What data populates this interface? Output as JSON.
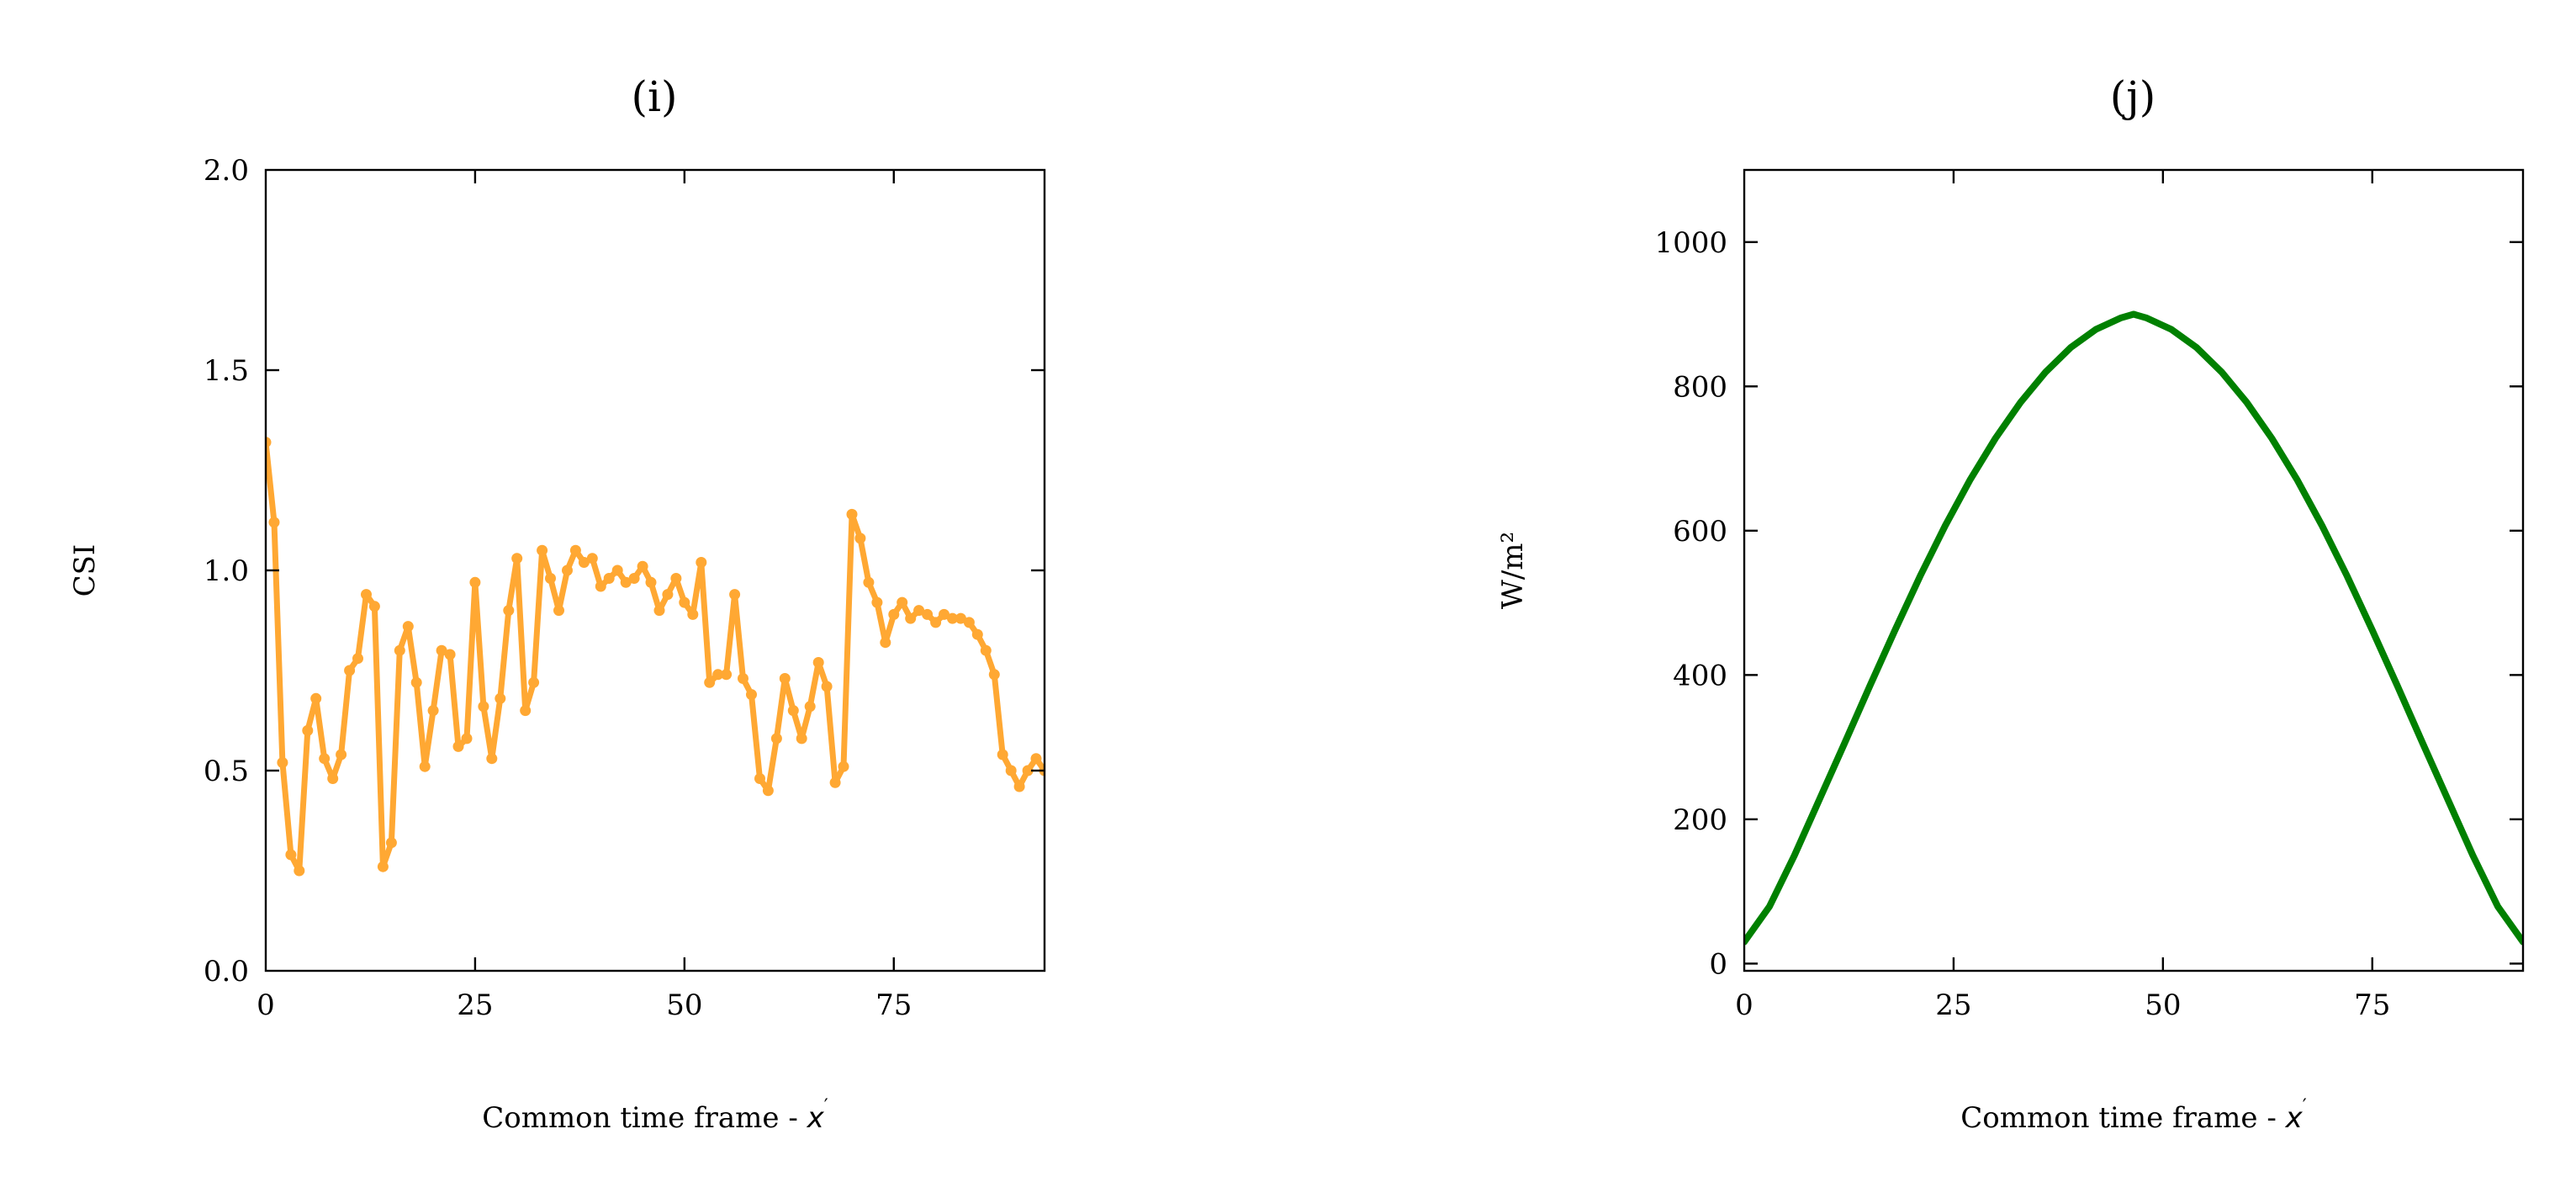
{
  "chart_data": [
    {
      "type": "line",
      "title": "(i)",
      "xlabel_prefix": "Common time frame - ",
      "xlabel_var": "x",
      "xlabel_prime": "′",
      "ylabel": "CSI",
      "xlim": [
        0,
        93
      ],
      "ylim": [
        0,
        2.0
      ],
      "xticks": [
        0,
        25,
        50,
        75
      ],
      "xtick_labels": [
        "0",
        "25",
        "50",
        "75"
      ],
      "yticks": [
        0,
        0.5,
        1.0,
        1.5,
        2.0
      ],
      "ytick_labels": [
        "0.0",
        "0.5",
        "1.0",
        "1.5",
        "2.0"
      ],
      "color": "#ffa833",
      "series": [
        {
          "name": "CSI",
          "x": [
            0,
            1,
            2,
            3,
            4,
            5,
            6,
            7,
            8,
            9,
            10,
            11,
            12,
            13,
            14,
            15,
            16,
            17,
            18,
            19,
            20,
            21,
            22,
            23,
            24,
            25,
            26,
            27,
            28,
            29,
            30,
            31,
            32,
            33,
            34,
            35,
            36,
            37,
            38,
            39,
            40,
            41,
            42,
            43,
            44,
            45,
            46,
            47,
            48,
            49,
            50,
            51,
            52,
            53,
            54,
            55,
            56,
            57,
            58,
            59,
            60,
            61,
            62,
            63,
            64,
            65,
            66,
            67,
            68,
            69,
            70,
            71,
            72,
            73,
            74,
            75,
            76,
            77,
            78,
            79,
            80,
            81,
            82,
            83,
            84,
            85,
            86,
            87,
            88,
            89,
            90,
            91,
            92,
            93
          ],
          "values": [
            1.32,
            1.12,
            0.52,
            0.29,
            0.25,
            0.6,
            0.68,
            0.53,
            0.48,
            0.54,
            0.75,
            0.78,
            0.94,
            0.91,
            0.26,
            0.32,
            0.8,
            0.86,
            0.72,
            0.51,
            0.65,
            0.8,
            0.79,
            0.56,
            0.58,
            0.97,
            0.66,
            0.53,
            0.68,
            0.9,
            1.03,
            0.65,
            0.72,
            1.05,
            0.98,
            0.9,
            1.0,
            1.05,
            1.02,
            1.03,
            0.96,
            0.98,
            1.0,
            0.97,
            0.98,
            1.01,
            0.97,
            0.9,
            0.94,
            0.98,
            0.92,
            0.89,
            1.02,
            0.72,
            0.74,
            0.74,
            0.94,
            0.73,
            0.69,
            0.48,
            0.45,
            0.58,
            0.73,
            0.65,
            0.58,
            0.66,
            0.77,
            0.71,
            0.47,
            0.51,
            1.14,
            1.08,
            0.97,
            0.92,
            0.82,
            0.89,
            0.92,
            0.88,
            0.9,
            0.89,
            0.87,
            0.89,
            0.88,
            0.88,
            0.87,
            0.84,
            0.8,
            0.74,
            0.54,
            0.5,
            0.46,
            0.5,
            0.53,
            0.5
          ]
        }
      ]
    },
    {
      "type": "line",
      "title": "(j)",
      "xlabel_prefix": "Common time frame - ",
      "xlabel_var": "x",
      "xlabel_prime": "′",
      "ylabel": "W/m²",
      "xlim": [
        0,
        93
      ],
      "ylim": [
        -10,
        1100
      ],
      "xticks": [
        0,
        25,
        50,
        75
      ],
      "xtick_labels": [
        "0",
        "25",
        "50",
        "75"
      ],
      "yticks": [
        0,
        200,
        400,
        600,
        800,
        1000
      ],
      "ytick_labels": [
        "0",
        "200",
        "400",
        "600",
        "800",
        "1000"
      ],
      "color": "#008000",
      "series": [
        {
          "name": "W/m²",
          "peak": 900,
          "peak_x": 46.5,
          "x": [
            0,
            3,
            6,
            9,
            12,
            15,
            18,
            21,
            24,
            27,
            30,
            33,
            36,
            39,
            42,
            45,
            46.5,
            48,
            51,
            54,
            57,
            60,
            63,
            66,
            69,
            72,
            75,
            78,
            81,
            84,
            87,
            90,
            93
          ],
          "values": [
            30,
            79,
            150,
            228,
            306,
            385,
            462,
            537,
            607,
            671,
            728,
            778,
            820,
            854,
            879,
            895,
            900,
            895,
            879,
            854,
            820,
            778,
            728,
            671,
            607,
            537,
            462,
            385,
            306,
            228,
            150,
            79,
            30
          ]
        }
      ]
    }
  ]
}
